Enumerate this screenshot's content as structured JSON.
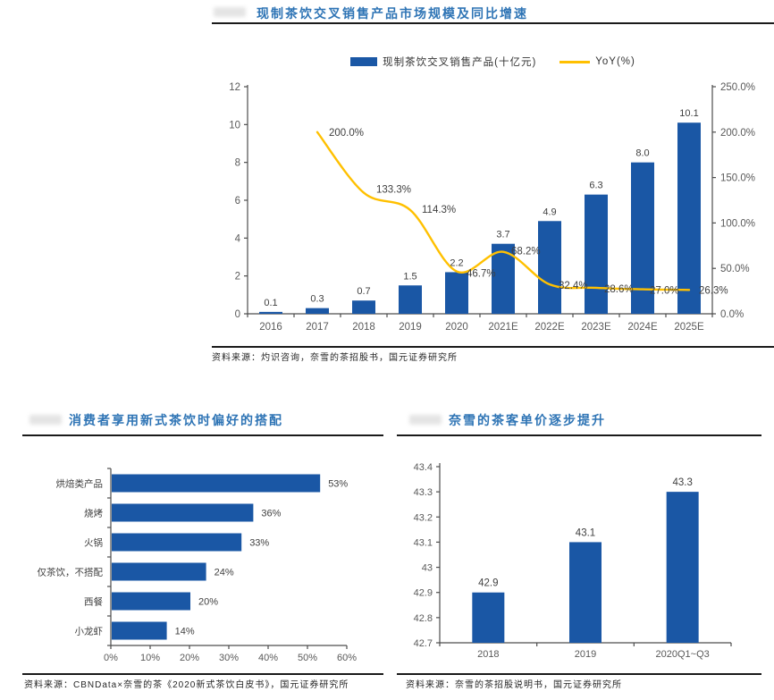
{
  "page": {
    "background": "#ffffff"
  },
  "colors": {
    "bar_blue": "#1A57A5",
    "line_gold": "#FFC000",
    "title_blue": "#2E74B5",
    "axis_line": "#4d4d4d",
    "tick_label": "#595959",
    "data_label": "#404040",
    "rule_black": "#1a1a1a",
    "source_text": "#262626"
  },
  "chart_data": [
    {
      "id": "market_size",
      "type": "bar+line",
      "title": "现制茶饮交叉销售产品市场规模及同比增速",
      "categories": [
        "2016",
        "2017",
        "2018",
        "2019",
        "2020",
        "2021E",
        "2022E",
        "2023E",
        "2024E",
        "2025E"
      ],
      "series": [
        {
          "name": "现制茶饮交叉销售产品(十亿元)",
          "type": "bar",
          "axis": "left",
          "values": [
            0.1,
            0.3,
            0.7,
            1.5,
            2.2,
            3.7,
            4.9,
            6.3,
            8.0,
            10.1
          ],
          "labels": [
            "0.1",
            "0.3",
            "0.7",
            "1.5",
            "2.2",
            "3.7",
            "4.9",
            "6.3",
            "8.0",
            "10.1"
          ]
        },
        {
          "name": "YoY(%)",
          "type": "line",
          "axis": "right",
          "values": [
            null,
            200.0,
            133.3,
            114.3,
            46.7,
            68.2,
            32.4,
            28.6,
            27.0,
            26.3
          ],
          "labels": [
            "",
            "200.0%",
            "133.3%",
            "114.3%",
            "46.7%",
            "68.2%",
            "32.4%",
            "28.6%",
            "27.0%",
            "26.3%"
          ]
        }
      ],
      "left_axis": {
        "min": 0,
        "max": 12,
        "step": 2,
        "ticks": [
          "0",
          "2",
          "4",
          "6",
          "8",
          "10",
          "12"
        ]
      },
      "right_axis": {
        "min": 0,
        "max": 250,
        "step": 50,
        "ticks": [
          "0.0%",
          "50.0%",
          "100.0%",
          "150.0%",
          "200.0%",
          "250.0%"
        ]
      },
      "legend_position": "top",
      "grid": false,
      "source": "资料来源：灼识咨询，奈雪的茶招股书，国元证券研究所"
    },
    {
      "id": "pairing_preference",
      "type": "bar",
      "orientation": "horizontal",
      "title": "消费者享用新式茶饮时偏好的搭配",
      "categories": [
        "烘焙类产品",
        "烧烤",
        "火锅",
        "仅茶饮，不搭配",
        "西餐",
        "小龙虾"
      ],
      "values": [
        53,
        36,
        33,
        24,
        20,
        14
      ],
      "labels": [
        "53%",
        "36%",
        "33%",
        "24%",
        "20%",
        "14%"
      ],
      "xlabel": "",
      "ylabel": "",
      "xlim": [
        0,
        60
      ],
      "x_ticks": [
        "0%",
        "10%",
        "20%",
        "30%",
        "40%",
        "50%",
        "60%"
      ],
      "grid": false,
      "source": "资料来源：CBNData×奈雪的茶《2020新式茶饮白皮书》，国元证券研究所"
    },
    {
      "id": "naixue_avg_ticket",
      "type": "bar",
      "orientation": "vertical",
      "title": "奈雪的茶客单价逐步提升",
      "categories": [
        "2018",
        "2019",
        "2020Q1~Q3"
      ],
      "values": [
        42.9,
        43.1,
        43.3
      ],
      "labels": [
        "42.9",
        "43.1",
        "43.3"
      ],
      "ylim": [
        42.7,
        43.4
      ],
      "y_ticks": [
        "42.7",
        "42.8",
        "42.9",
        "43",
        "43.1",
        "43.2",
        "43.3",
        "43.4"
      ],
      "grid": false,
      "source": "资料来源：奈雪的茶招股说明书，国元证券研究所"
    }
  ]
}
